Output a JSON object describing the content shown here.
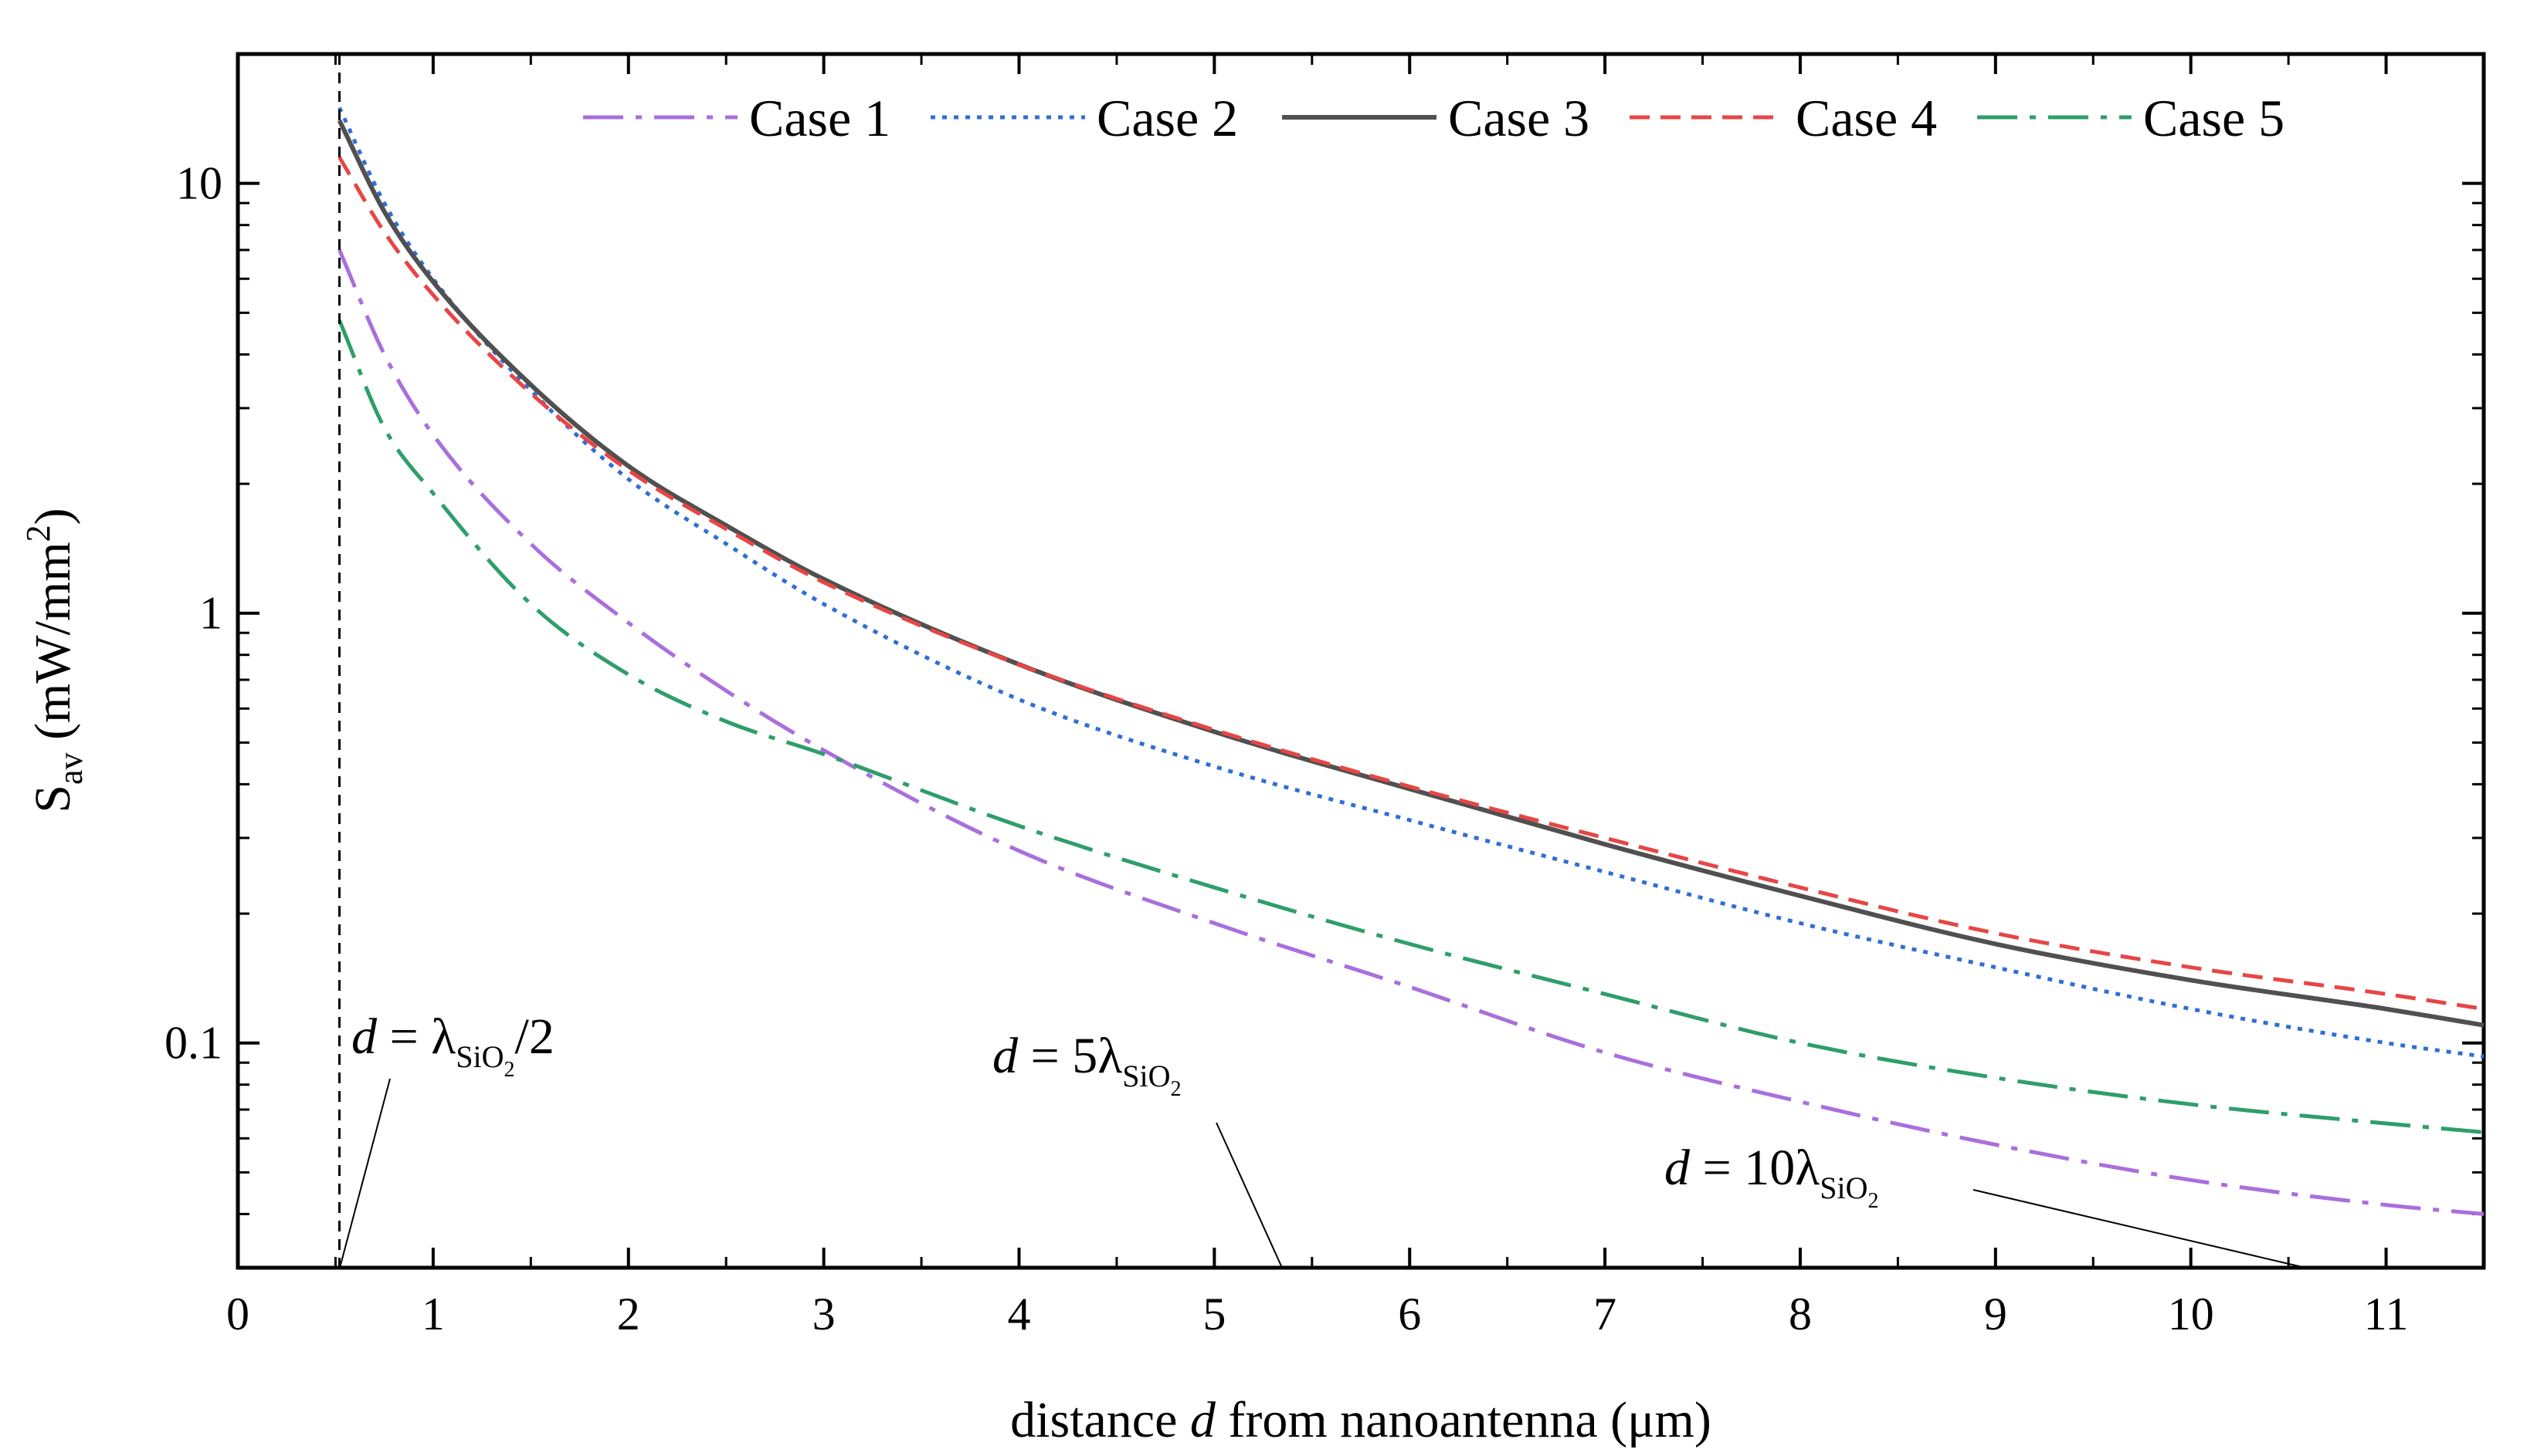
{
  "chart_data": {
    "type": "line",
    "xlabel": {
      "pre": "distance ",
      "var": "d",
      "post": " from nanoantenna (μm)"
    },
    "ylabel": {
      "main": "S",
      "sub": "av",
      "units": " (mW/mm",
      "sup": "2",
      "close": ")"
    },
    "xlim": [
      0,
      11.5
    ],
    "ylim": [
      0.03,
      20
    ],
    "yscale": "log",
    "xticks": [
      0,
      1,
      2,
      3,
      4,
      5,
      6,
      7,
      8,
      9,
      10,
      11
    ],
    "xtick_labels": [
      "0",
      "1",
      "2",
      "3",
      "4",
      "5",
      "6",
      "7",
      "8",
      "9",
      "10",
      "11"
    ],
    "yticks": [
      0.1,
      1,
      10
    ],
    "ytick_labels": [
      "0.1",
      "1",
      "10"
    ],
    "legend_position": "top",
    "reference_line_x": 0.52,
    "series": [
      {
        "name": "Case 1",
        "color": "#a96fdc",
        "dash": "52 16 8 16",
        "x": [
          0.52,
          0.75,
          1,
          1.5,
          2,
          2.5,
          3,
          4,
          5,
          6,
          7,
          8,
          9,
          10,
          11,
          11.5
        ],
        "y": [
          7.0,
          4.0,
          2.6,
          1.45,
          0.95,
          0.66,
          0.48,
          0.28,
          0.19,
          0.135,
          0.095,
          0.073,
          0.058,
          0.048,
          0.042,
          0.04
        ]
      },
      {
        "name": "Case 2",
        "color": "#2f6fd4",
        "dash": "6 9",
        "x": [
          0.52,
          0.75,
          1,
          1.5,
          2,
          2.5,
          3,
          4,
          5,
          6,
          7,
          8,
          9,
          10,
          11,
          11.5
        ],
        "y": [
          15.0,
          9.0,
          6.0,
          3.3,
          2.05,
          1.45,
          1.05,
          0.63,
          0.44,
          0.33,
          0.25,
          0.19,
          0.15,
          0.12,
          0.1,
          0.093
        ]
      },
      {
        "name": "Case 3",
        "color": "#505050",
        "dash": "",
        "x": [
          0.52,
          0.75,
          1,
          1.5,
          2,
          2.5,
          3,
          4,
          5,
          6,
          7,
          8,
          9,
          10,
          11,
          11.5
        ],
        "y": [
          14.0,
          8.6,
          5.9,
          3.4,
          2.2,
          1.6,
          1.2,
          0.76,
          0.53,
          0.39,
          0.29,
          0.22,
          0.17,
          0.14,
          0.12,
          0.11
        ]
      },
      {
        "name": "Case 4",
        "color": "#e84545",
        "dash": "26 14",
        "x": [
          0.52,
          0.75,
          1,
          1.5,
          2,
          2.5,
          3,
          4,
          5,
          6,
          7,
          8,
          9,
          10,
          11,
          11.5
        ],
        "y": [
          11.5,
          7.7,
          5.5,
          3.25,
          2.15,
          1.57,
          1.18,
          0.76,
          0.535,
          0.395,
          0.3,
          0.23,
          0.18,
          0.15,
          0.13,
          0.12
        ]
      },
      {
        "name": "Case 5",
        "color": "#2e9e6b",
        "dash": "52 16 8 16",
        "x": [
          0.52,
          0.75,
          1,
          1.5,
          2,
          2.5,
          3,
          4,
          5,
          6,
          7,
          8,
          9,
          10,
          11,
          11.5
        ],
        "y": [
          4.8,
          2.7,
          1.9,
          1.05,
          0.72,
          0.56,
          0.47,
          0.32,
          0.23,
          0.17,
          0.13,
          0.1,
          0.083,
          0.072,
          0.065,
          0.062
        ]
      }
    ],
    "annotations": [
      {
        "var": "d",
        "eq": " = ",
        "lambda": "λ",
        "sub": "SiO",
        "sub2": "2",
        "suffix": "/2"
      },
      {
        "var": "d",
        "eq": " = ",
        "coef": "5",
        "lambda": "λ",
        "sub": "SiO",
        "sub2": "2",
        "suffix": ""
      },
      {
        "var": "d",
        "eq": " = ",
        "coef": "10",
        "lambda": "λ",
        "sub": "SiO",
        "sub2": "2",
        "suffix": ""
      }
    ]
  }
}
